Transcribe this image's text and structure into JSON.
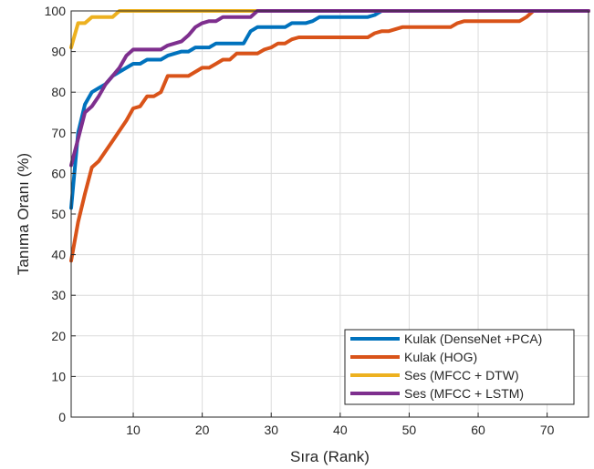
{
  "chart_data": {
    "type": "line",
    "title": "",
    "xlabel": "Sıra (Rank)",
    "ylabel": "Tanıma Oranı (%)",
    "xlim": [
      1,
      76
    ],
    "ylim": [
      0,
      100
    ],
    "xticks": [
      10,
      20,
      30,
      40,
      50,
      60,
      70
    ],
    "yticks": [
      0,
      10,
      20,
      30,
      40,
      50,
      60,
      70,
      80,
      90,
      100
    ],
    "grid": true,
    "legend_position": "bottom-right",
    "series": [
      {
        "name": "Kulak (DenseNet +PCA)",
        "color": "#0072BD",
        "points": [
          [
            1,
            51.5
          ],
          [
            2,
            70
          ],
          [
            3,
            77
          ],
          [
            4,
            80
          ],
          [
            5,
            81
          ],
          [
            6,
            82
          ],
          [
            7,
            84
          ],
          [
            8,
            85
          ],
          [
            9,
            86
          ],
          [
            10,
            87
          ],
          [
            11,
            87
          ],
          [
            12,
            88
          ],
          [
            13,
            88
          ],
          [
            14,
            88
          ],
          [
            15,
            89
          ],
          [
            16,
            89.5
          ],
          [
            17,
            90
          ],
          [
            18,
            90
          ],
          [
            19,
            91
          ],
          [
            20,
            91
          ],
          [
            21,
            91
          ],
          [
            22,
            92
          ],
          [
            23,
            92
          ],
          [
            24,
            92
          ],
          [
            25,
            92
          ],
          [
            26,
            92
          ],
          [
            27,
            95
          ],
          [
            28,
            96
          ],
          [
            29,
            96
          ],
          [
            30,
            96
          ],
          [
            31,
            96
          ],
          [
            32,
            96
          ],
          [
            33,
            97
          ],
          [
            34,
            97
          ],
          [
            35,
            97
          ],
          [
            36,
            97.5
          ],
          [
            37,
            98.5
          ],
          [
            38,
            98.5
          ],
          [
            39,
            98.5
          ],
          [
            40,
            98.5
          ],
          [
            41,
            98.5
          ],
          [
            42,
            98.5
          ],
          [
            43,
            98.5
          ],
          [
            44,
            98.5
          ],
          [
            45,
            99
          ],
          [
            46,
            100
          ],
          [
            76,
            100
          ]
        ]
      },
      {
        "name": "Kulak (HOG)",
        "color": "#D95319",
        "points": [
          [
            1,
            38.5
          ],
          [
            2,
            48
          ],
          [
            3,
            55
          ],
          [
            4,
            61.5
          ],
          [
            5,
            63
          ],
          [
            6,
            65.5
          ],
          [
            7,
            68
          ],
          [
            8,
            70.5
          ],
          [
            9,
            73
          ],
          [
            10,
            76
          ],
          [
            11,
            76.5
          ],
          [
            12,
            79
          ],
          [
            13,
            79
          ],
          [
            14,
            80
          ],
          [
            15,
            84
          ],
          [
            16,
            84
          ],
          [
            17,
            84
          ],
          [
            18,
            84
          ],
          [
            19,
            85
          ],
          [
            20,
            86
          ],
          [
            21,
            86
          ],
          [
            22,
            87
          ],
          [
            23,
            88
          ],
          [
            24,
            88
          ],
          [
            25,
            89.5
          ],
          [
            26,
            89.5
          ],
          [
            27,
            89.5
          ],
          [
            28,
            89.5
          ],
          [
            29,
            90.5
          ],
          [
            30,
            91
          ],
          [
            31,
            92
          ],
          [
            32,
            92
          ],
          [
            33,
            93
          ],
          [
            34,
            93.5
          ],
          [
            35,
            93.5
          ],
          [
            36,
            93.5
          ],
          [
            37,
            93.5
          ],
          [
            38,
            93.5
          ],
          [
            39,
            93.5
          ],
          [
            40,
            93.5
          ],
          [
            41,
            93.5
          ],
          [
            42,
            93.5
          ],
          [
            43,
            93.5
          ],
          [
            44,
            93.5
          ],
          [
            45,
            94.5
          ],
          [
            46,
            95
          ],
          [
            47,
            95
          ],
          [
            48,
            95.5
          ],
          [
            49,
            96
          ],
          [
            50,
            96
          ],
          [
            51,
            96
          ],
          [
            52,
            96
          ],
          [
            53,
            96
          ],
          [
            54,
            96
          ],
          [
            55,
            96
          ],
          [
            56,
            96
          ],
          [
            57,
            97
          ],
          [
            58,
            97.5
          ],
          [
            59,
            97.5
          ],
          [
            60,
            97.5
          ],
          [
            61,
            97.5
          ],
          [
            62,
            97.5
          ],
          [
            63,
            97.5
          ],
          [
            64,
            97.5
          ],
          [
            65,
            97.5
          ],
          [
            66,
            97.5
          ],
          [
            67,
            98.5
          ],
          [
            68,
            100
          ],
          [
            76,
            100
          ]
        ]
      },
      {
        "name": "Ses (MFCC + DTW)",
        "color": "#EDB120",
        "points": [
          [
            1,
            91
          ],
          [
            2,
            97
          ],
          [
            3,
            97
          ],
          [
            4,
            98.5
          ],
          [
            5,
            98.5
          ],
          [
            6,
            98.5
          ],
          [
            7,
            98.5
          ],
          [
            8,
            100
          ],
          [
            76,
            100
          ]
        ]
      },
      {
        "name": "Ses (MFCC + LSTM)",
        "color": "#7E2F8E",
        "points": [
          [
            1,
            62
          ],
          [
            2,
            68.5
          ],
          [
            3,
            75
          ],
          [
            4,
            76.5
          ],
          [
            5,
            79
          ],
          [
            6,
            82
          ],
          [
            7,
            84
          ],
          [
            8,
            86
          ],
          [
            9,
            89
          ],
          [
            10,
            90.5
          ],
          [
            11,
            90.5
          ],
          [
            12,
            90.5
          ],
          [
            13,
            90.5
          ],
          [
            14,
            90.5
          ],
          [
            15,
            91.5
          ],
          [
            16,
            92
          ],
          [
            17,
            92.5
          ],
          [
            18,
            94
          ],
          [
            19,
            96
          ],
          [
            20,
            97
          ],
          [
            21,
            97.5
          ],
          [
            22,
            97.5
          ],
          [
            23,
            98.5
          ],
          [
            24,
            98.5
          ],
          [
            25,
            98.5
          ],
          [
            26,
            98.5
          ],
          [
            27,
            98.5
          ],
          [
            28,
            100
          ],
          [
            76,
            100
          ]
        ]
      }
    ]
  }
}
